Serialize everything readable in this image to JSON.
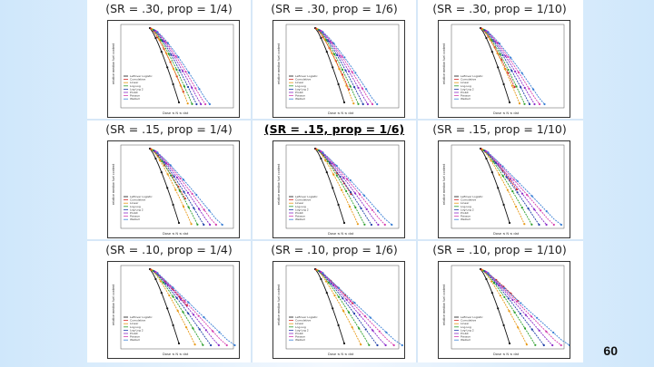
{
  "slide": {
    "page_number": "60",
    "axis_x_label": "Dose ≤ N ≤ dat",
    "axis_y_label": "relative median fuel content",
    "legend": [
      "Leftover Logistic",
      "Cumulative",
      "Linear",
      "Log-Log",
      "Log-Log 2",
      "Probit",
      "Poisson",
      "Weibull"
    ],
    "series_colors": [
      "#111111",
      "#d12b2b",
      "#e89a17",
      "#2a9d2a",
      "#1f3ea8",
      "#8b2bc9",
      "#d43fb0",
      "#3a7fd5"
    ]
  },
  "panels": [
    {
      "title": "(SR = .30, prop = 1/4)",
      "spread": 0.25,
      "highlight": false
    },
    {
      "title": "(SR = .30, prop = 1/6)",
      "spread": 0.3,
      "highlight": false
    },
    {
      "title": "(SR = .30, prop = 1/10)",
      "spread": 0.35,
      "highlight": false
    },
    {
      "title": "(SR = .15, prop = 1/4)",
      "spread": 0.55,
      "highlight": false
    },
    {
      "title": "(SR = .15, prop = 1/6)",
      "spread": 0.65,
      "highlight": true
    },
    {
      "title": "(SR = .15, prop = 1/10)",
      "spread": 0.75,
      "highlight": false
    },
    {
      "title": "(SR = .10, prop = 1/4)",
      "spread": 0.85,
      "highlight": false
    },
    {
      "title": "(SR = .10, prop = 1/6)",
      "spread": 0.9,
      "highlight": false
    },
    {
      "title": "(SR = .10, prop = 1/10)",
      "spread": 0.95,
      "highlight": false
    }
  ]
}
